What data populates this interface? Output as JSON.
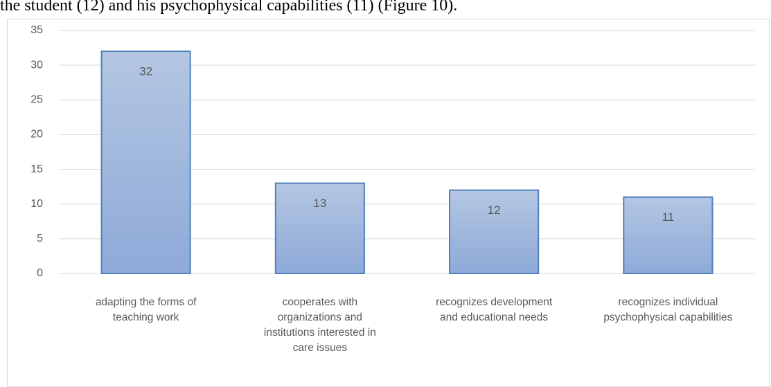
{
  "header_text": "the student (12) and his psychophysical capabilities (11) (Figure 10).",
  "chart_data": {
    "type": "bar",
    "categories": [
      "adapting the forms of teaching work",
      "cooperates with organizations and institutions interested in care issues",
      "recognizes development and educational needs",
      "recognizes individual psychophysical capabilities"
    ],
    "values": [
      32,
      13,
      12,
      11
    ],
    "color": "#4f81bd",
    "ylim": [
      0,
      35
    ],
    "yticks": [
      0,
      5,
      10,
      15,
      20,
      25,
      30,
      35
    ],
    "grid": true
  }
}
